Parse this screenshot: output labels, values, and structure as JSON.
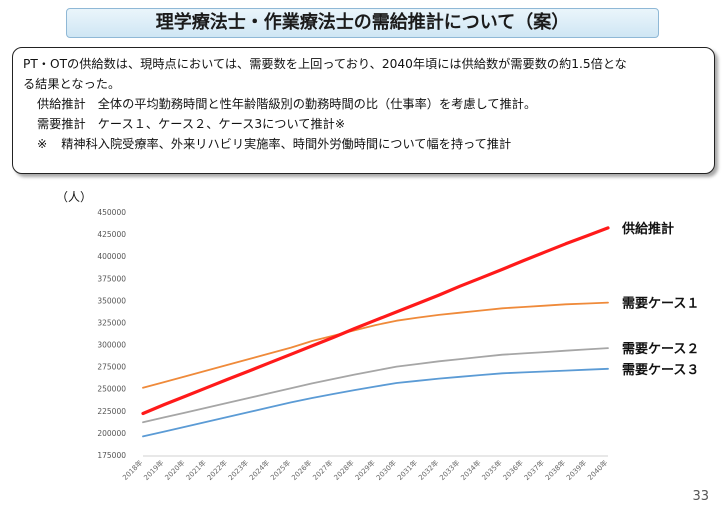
{
  "title": "理学療法士・作業療法士の需給推計について（案）",
  "summary": {
    "line1": "PT・OTの供給数は、現時点においては、需要数を上回っており、2040年頃には供給数が需要数の約1.5倍とな",
    "line2": "る結果となった。",
    "supply_label": "供給推計",
    "supply_text": "全体の平均勤務時間と性年齢階級別の勤務時間の比（仕事率）を考慮して推計。",
    "demand_label": "需要推計",
    "demand_text": "ケース１、ケース２、ケース3について推計※",
    "note_mark": "※",
    "note_text": "精神科入院受療率、外来リハビリ実施率、時間外労働時間について幅を持って推計"
  },
  "page_number": "33",
  "chart_data": {
    "type": "line",
    "ylabel": "（人）",
    "ylim": [
      175000,
      450000
    ],
    "yticks": [
      175000,
      200000,
      225000,
      250000,
      275000,
      300000,
      325000,
      350000,
      375000,
      400000,
      425000,
      450000
    ],
    "categories": [
      "2018年",
      "2019年",
      "2020年",
      "2021年",
      "2022年",
      "2023年",
      "2024年",
      "2025年",
      "2026年",
      "2027年",
      "2028年",
      "2029年",
      "2030年",
      "2031年",
      "2032年",
      "2033年",
      "2034年",
      "2035年",
      "2036年",
      "2037年",
      "2038年",
      "2039年",
      "2040年"
    ],
    "series": [
      {
        "name": "供給推計",
        "color": "#ff1a1a",
        "width": 3.2,
        "values": [
          222000,
          232000,
          241500,
          251000,
          260500,
          270000,
          279500,
          289000,
          298500,
          308000,
          318000,
          327500,
          337000,
          346500,
          356000,
          366000,
          375500,
          385000,
          395000,
          404500,
          414000,
          423000,
          432000
        ]
      },
      {
        "name": "需要ケース１",
        "color": "#ef8a3a",
        "width": 1.8,
        "values": [
          251000,
          257500,
          264000,
          270500,
          277000,
          283500,
          290000,
          296500,
          304000,
          310000,
          316000,
          322000,
          327000,
          330500,
          333500,
          336000,
          338500,
          341000,
          342500,
          344000,
          345500,
          346500,
          347500
        ]
      },
      {
        "name": "需要ケース２",
        "color": "#a6a6a6",
        "width": 1.8,
        "values": [
          212000,
          217500,
          223000,
          228500,
          234000,
          239500,
          245000,
          250500,
          256000,
          261000,
          266000,
          270500,
          275000,
          278000,
          281000,
          283500,
          286000,
          288500,
          290000,
          291500,
          293000,
          294500,
          296000
        ]
      },
      {
        "name": "需要ケース３",
        "color": "#5b9bd5",
        "width": 1.8,
        "values": [
          196000,
          201500,
          207000,
          212500,
          218000,
          223500,
          229000,
          234500,
          239500,
          244000,
          248500,
          252500,
          256500,
          259000,
          261500,
          263500,
          265500,
          267500,
          268500,
          269500,
          270500,
          271500,
          272500
        ]
      }
    ]
  }
}
